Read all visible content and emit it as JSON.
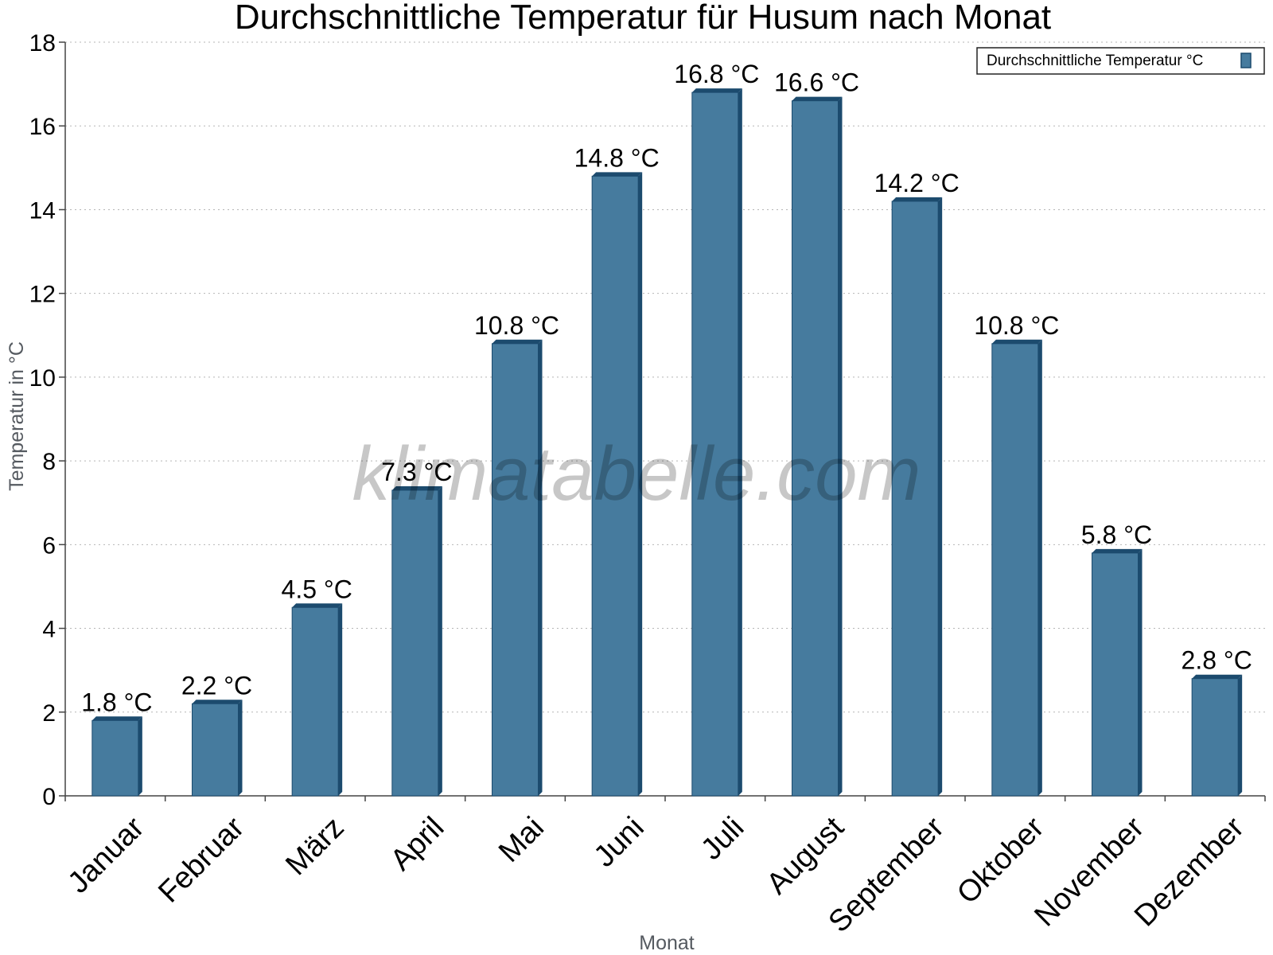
{
  "chart_data": {
    "type": "bar",
    "title": "Durchschnittliche Temperatur für Husum nach Monat",
    "xlabel": "Monat",
    "ylabel": "Temperatur in °C",
    "ylim": [
      0,
      18
    ],
    "yticks": [
      0,
      2,
      4,
      6,
      8,
      10,
      12,
      14,
      16,
      18
    ],
    "grid": true,
    "legend_position": "top-right",
    "categories": [
      "Januar",
      "Februar",
      "März",
      "April",
      "Mai",
      "Juni",
      "Juli",
      "August",
      "September",
      "Oktober",
      "November",
      "Dezember"
    ],
    "series": [
      {
        "name": "Durchschnittliche Temperatur °C",
        "values": [
          1.8,
          2.2,
          4.5,
          7.3,
          10.8,
          14.8,
          16.8,
          16.6,
          14.2,
          10.8,
          5.8,
          2.8
        ],
        "labels": [
          "1.8 °C",
          "2.2 °C",
          "4.5 °C",
          "7.3 °C",
          "10.8 °C",
          "14.8 °C",
          "16.8 °C",
          "16.6 °C",
          "14.2 °C",
          "10.8 °C",
          "5.8 °C",
          "2.8 °C"
        ],
        "color": "#467b9e",
        "shade_color": "#1c4b6e"
      }
    ],
    "watermark": "klimatabelle.com"
  }
}
